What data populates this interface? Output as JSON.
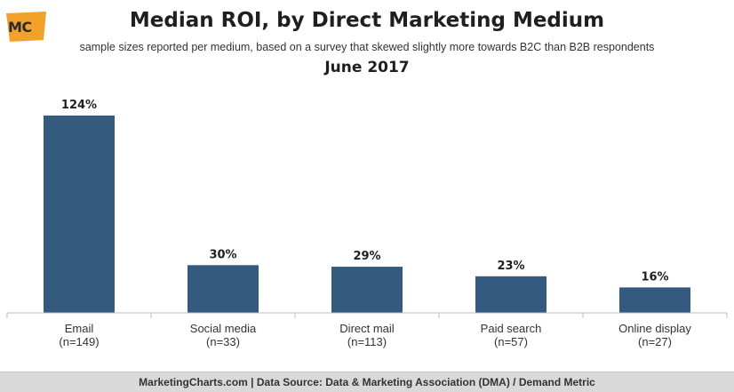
{
  "header": {
    "logo_text": "MC",
    "title": "Median ROI, by Direct Marketing Medium",
    "subtitle": "sample sizes reported per medium, based on a survey that skewed slightly more towards B2C than B2B respondents",
    "date": "June 2017"
  },
  "chart_data": {
    "type": "bar",
    "title": "Median ROI, by Direct Marketing Medium",
    "categories": [
      "Email",
      "Social media",
      "Direct mail",
      "Paid search",
      "Online display"
    ],
    "sample_sizes": [
      "(n=149)",
      "(n=33)",
      "(n=113)",
      "(n=57)",
      "(n=27)"
    ],
    "values": [
      124,
      30,
      29,
      23,
      16
    ],
    "value_labels": [
      "124%",
      "30%",
      "29%",
      "23%",
      "16%"
    ],
    "ylim": [
      0,
      124
    ],
    "grid": false,
    "bar_color": "#345a80"
  },
  "footer": {
    "text": "MarketingCharts.com | Data Source: Data & Marketing Association (DMA) / Demand Metric"
  },
  "colors": {
    "logo_bg": "#f2a12a",
    "footer_bg": "#d9d9d9"
  }
}
